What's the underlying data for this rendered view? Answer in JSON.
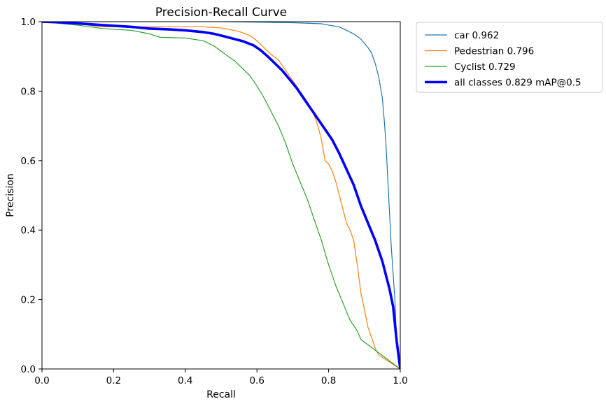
{
  "chart_data": {
    "type": "line",
    "title": "Precision-Recall Curve",
    "xlabel": "Recall",
    "ylabel": "Precision",
    "xlim": [
      0.0,
      1.0
    ],
    "ylim": [
      0.0,
      1.0
    ],
    "xticks": [
      "0.0",
      "0.2",
      "0.4",
      "0.6",
      "0.8",
      "1.0"
    ],
    "yticks": [
      "0.0",
      "0.2",
      "0.4",
      "0.6",
      "0.8",
      "1.0"
    ],
    "grid": false,
    "legend_position": "outside-top-right",
    "series": [
      {
        "name": "car 0.962",
        "color": "#1f77b4",
        "width": "thin",
        "points": [
          [
            0,
            1
          ],
          [
            0.2,
            1
          ],
          [
            0.5,
            1
          ],
          [
            0.7,
            0.997
          ],
          [
            0.78,
            0.994
          ],
          [
            0.8,
            0.99
          ],
          [
            0.83,
            0.985
          ],
          [
            0.85,
            0.975
          ],
          [
            0.87,
            0.965
          ],
          [
            0.89,
            0.95
          ],
          [
            0.91,
            0.925
          ],
          [
            0.92,
            0.91
          ],
          [
            0.93,
            0.88
          ],
          [
            0.94,
            0.84
          ],
          [
            0.95,
            0.78
          ],
          [
            0.955,
            0.72
          ],
          [
            0.96,
            0.65
          ],
          [
            0.965,
            0.55
          ],
          [
            0.97,
            0.45
          ],
          [
            0.975,
            0.35
          ],
          [
            0.985,
            0.2
          ],
          [
            0.99,
            0.08
          ],
          [
            1,
            0
          ]
        ]
      },
      {
        "name": "Pedestrian 0.796",
        "color": "#ff7f0e",
        "width": "thin",
        "points": [
          [
            0,
            1
          ],
          [
            0.05,
            1
          ],
          [
            0.17,
            0.985
          ],
          [
            0.3,
            0.985
          ],
          [
            0.45,
            0.985
          ],
          [
            0.5,
            0.982
          ],
          [
            0.52,
            0.978
          ],
          [
            0.55,
            0.972
          ],
          [
            0.58,
            0.96
          ],
          [
            0.6,
            0.945
          ],
          [
            0.62,
            0.925
          ],
          [
            0.64,
            0.905
          ],
          [
            0.66,
            0.89
          ],
          [
            0.68,
            0.86
          ],
          [
            0.7,
            0.83
          ],
          [
            0.72,
            0.8
          ],
          [
            0.74,
            0.77
          ],
          [
            0.76,
            0.73
          ],
          [
            0.77,
            0.7
          ],
          [
            0.78,
            0.66
          ],
          [
            0.79,
            0.6
          ],
          [
            0.8,
            0.59
          ],
          [
            0.81,
            0.57
          ],
          [
            0.82,
            0.54
          ],
          [
            0.83,
            0.5
          ],
          [
            0.84,
            0.46
          ],
          [
            0.85,
            0.42
          ],
          [
            0.86,
            0.4
          ],
          [
            0.87,
            0.37
          ],
          [
            0.88,
            0.3
          ],
          [
            0.89,
            0.22
          ],
          [
            0.9,
            0.17
          ],
          [
            0.91,
            0.12
          ],
          [
            0.92,
            0.09
          ],
          [
            0.93,
            0.06
          ],
          [
            0.94,
            0.04
          ],
          [
            1,
            0
          ]
        ]
      },
      {
        "name": "Cyclist 0.729",
        "color": "#2ca02c",
        "width": "thin",
        "points": [
          [
            0,
            1
          ],
          [
            0.1,
            0.99
          ],
          [
            0.17,
            0.98
          ],
          [
            0.25,
            0.975
          ],
          [
            0.3,
            0.965
          ],
          [
            0.33,
            0.955
          ],
          [
            0.4,
            0.953
          ],
          [
            0.45,
            0.945
          ],
          [
            0.48,
            0.93
          ],
          [
            0.5,
            0.915
          ],
          [
            0.52,
            0.9
          ],
          [
            0.54,
            0.885
          ],
          [
            0.56,
            0.865
          ],
          [
            0.58,
            0.845
          ],
          [
            0.6,
            0.815
          ],
          [
            0.62,
            0.78
          ],
          [
            0.64,
            0.74
          ],
          [
            0.66,
            0.7
          ],
          [
            0.68,
            0.65
          ],
          [
            0.7,
            0.59
          ],
          [
            0.72,
            0.54
          ],
          [
            0.74,
            0.49
          ],
          [
            0.76,
            0.43
          ],
          [
            0.78,
            0.37
          ],
          [
            0.8,
            0.3
          ],
          [
            0.82,
            0.24
          ],
          [
            0.84,
            0.19
          ],
          [
            0.86,
            0.14
          ],
          [
            0.88,
            0.11
          ],
          [
            0.89,
            0.085
          ],
          [
            1,
            0
          ]
        ]
      },
      {
        "name": "all classes 0.829 mAP@0.5",
        "color": "#0000ff",
        "width": "thick",
        "points": [
          [
            0,
            1
          ],
          [
            0.05,
            0.998
          ],
          [
            0.1,
            0.995
          ],
          [
            0.17,
            0.99
          ],
          [
            0.25,
            0.985
          ],
          [
            0.3,
            0.98
          ],
          [
            0.35,
            0.978
          ],
          [
            0.4,
            0.975
          ],
          [
            0.45,
            0.97
          ],
          [
            0.48,
            0.965
          ],
          [
            0.5,
            0.96
          ],
          [
            0.53,
            0.952
          ],
          [
            0.56,
            0.944
          ],
          [
            0.59,
            0.932
          ],
          [
            0.61,
            0.918
          ],
          [
            0.63,
            0.9
          ],
          [
            0.65,
            0.88
          ],
          [
            0.67,
            0.86
          ],
          [
            0.69,
            0.835
          ],
          [
            0.71,
            0.81
          ],
          [
            0.73,
            0.78
          ],
          [
            0.75,
            0.75
          ],
          [
            0.77,
            0.72
          ],
          [
            0.79,
            0.69
          ],
          [
            0.81,
            0.66
          ],
          [
            0.83,
            0.62
          ],
          [
            0.85,
            0.575
          ],
          [
            0.87,
            0.53
          ],
          [
            0.89,
            0.47
          ],
          [
            0.91,
            0.42
          ],
          [
            0.93,
            0.37
          ],
          [
            0.95,
            0.31
          ],
          [
            0.96,
            0.27
          ],
          [
            0.97,
            0.23
          ],
          [
            0.98,
            0.18
          ],
          [
            0.985,
            0.13
          ],
          [
            0.99,
            0.08
          ],
          [
            0.995,
            0.04
          ],
          [
            1,
            0
          ]
        ]
      }
    ]
  }
}
